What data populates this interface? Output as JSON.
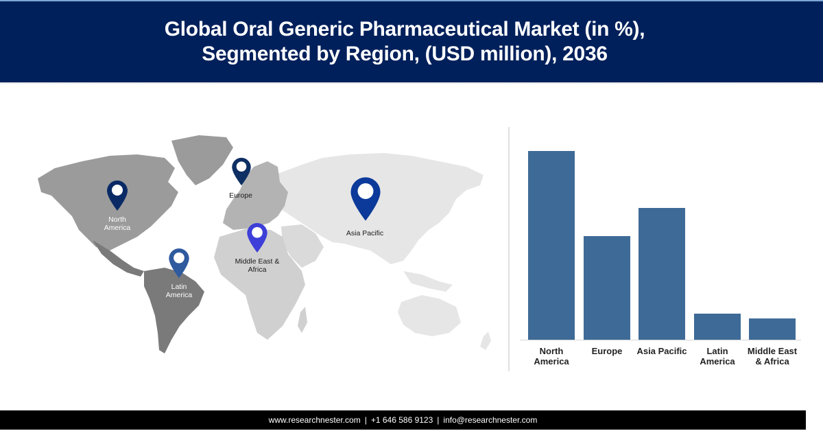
{
  "header": {
    "title_line1": "Global Oral Generic Pharmaceutical Market (in %),",
    "title_line2": "Segmented by Region, (USD million), 2036",
    "background_color": "#00205b"
  },
  "map": {
    "pins": [
      {
        "region": "North America",
        "label_line1": "North",
        "label_line2": "America",
        "color": "#0a2a66",
        "icon": "map-pin-icon"
      },
      {
        "region": "Europe",
        "label_line1": "Europe",
        "label_line2": "",
        "color": "#0e2f63",
        "icon": "map-pin-icon"
      },
      {
        "region": "Asia Pacific",
        "label_line1": "Asia Pacific",
        "label_line2": "",
        "color": "#0b3a9a",
        "icon": "map-pin-icon"
      },
      {
        "region": "Middle East & Africa",
        "label_line1": "Middle East &",
        "label_line2": "Africa",
        "color": "#3d3fd8",
        "icon": "map-pin-icon"
      },
      {
        "region": "Latin America",
        "label_line1": "Latin",
        "label_line2": "America",
        "color": "#2f5a9e",
        "icon": "map-pin-icon"
      }
    ]
  },
  "chart_data": {
    "type": "bar",
    "title": "Global Oral Generic Pharmaceutical Market (in %), Segmented by Region, (USD million), 2036",
    "categories": [
      "North America",
      "Europe",
      "Asia Pacific",
      "Latin America",
      "Middle East & Africa"
    ],
    "category_labels": [
      [
        "North",
        "America"
      ],
      [
        "Europe",
        ""
      ],
      [
        "Asia Pacific",
        ""
      ],
      [
        "Latin",
        "America"
      ],
      [
        "Middle East",
        "& Africa"
      ]
    ],
    "values": [
      40,
      22,
      28,
      5.5,
      4.5
    ],
    "xlabel": "",
    "ylabel": "",
    "ylim": [
      0,
      40
    ],
    "grid": false,
    "legend": "none",
    "bar_color": "#3e6a97",
    "note": "No y-axis shown; values estimated as relative shares from bar heights"
  },
  "footer": {
    "website": "www.researchnester.com",
    "phone": "+1 646 586 9123",
    "email": "info@researchnester.com",
    "separator": "|"
  }
}
